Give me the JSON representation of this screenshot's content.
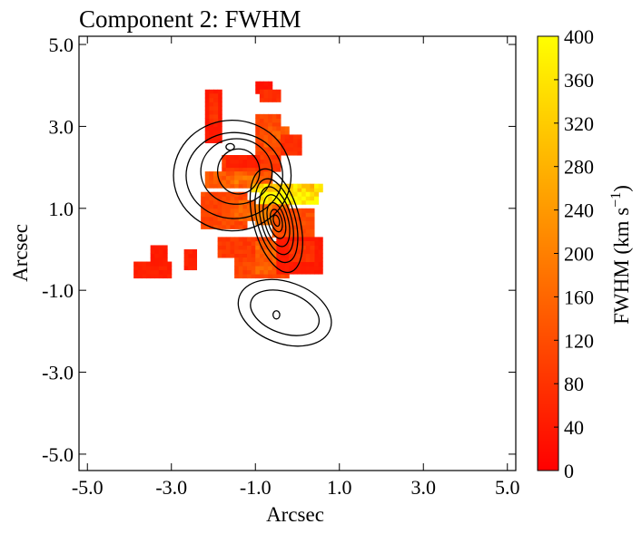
{
  "chart_data": {
    "type": "heatmap",
    "title": "Component 2: FWHM",
    "xlabel": "Arcsec",
    "ylabel": "Arcsec",
    "xlim": [
      -5.2,
      5.2
    ],
    "ylim": [
      -5.4,
      5.2
    ],
    "xticks": [
      -5.0,
      -3.0,
      -1.0,
      1.0,
      3.0,
      5.0
    ],
    "yticks": [
      -5.0,
      -3.0,
      -1.0,
      1.0,
      3.0,
      5.0
    ],
    "xtick_labels": [
      "-5.0",
      "-3.0",
      "-1.0",
      "1.0",
      "3.0",
      "5.0"
    ],
    "ytick_labels": [
      "-5.0",
      "-3.0",
      "-1.0",
      "1.0",
      "3.0",
      "5.0"
    ],
    "colorbar": {
      "label_main": "FWHM (km s",
      "label_sup": "−1",
      "label_close": ")",
      "min": 0,
      "max": 400,
      "ticks": [
        0,
        40,
        80,
        120,
        160,
        200,
        240,
        280,
        320,
        360,
        400
      ],
      "tick_labels": [
        "0",
        "40",
        "80",
        "120",
        "160",
        "200",
        "240",
        "280",
        "320",
        "360",
        "400"
      ],
      "colormap": "autumn"
    },
    "pixel_size_arcsec": 0.1,
    "regions": [
      {
        "x0": -2.2,
        "x1": -1.8,
        "y0": 2.6,
        "y1": 3.9,
        "value": 40
      },
      {
        "x0": -2.1,
        "x1": -1.9,
        "y0": 3.1,
        "y1": 3.8,
        "value": 80
      },
      {
        "x0": -1.0,
        "x1": -0.6,
        "y0": 3.8,
        "y1": 4.1,
        "value": 30
      },
      {
        "x0": -0.9,
        "x1": -0.4,
        "y0": 3.6,
        "y1": 3.9,
        "value": 70
      },
      {
        "x0": -1.0,
        "x1": -0.4,
        "y0": 2.2,
        "y1": 3.3,
        "value": 110
      },
      {
        "x0": -0.8,
        "x1": -0.2,
        "y0": 2.5,
        "y1": 3.0,
        "value": 140
      },
      {
        "x0": -0.4,
        "x1": 0.1,
        "y0": 2.3,
        "y1": 2.8,
        "value": 70
      },
      {
        "x0": -1.8,
        "x1": -0.4,
        "y0": 1.9,
        "y1": 2.3,
        "value": 90
      },
      {
        "x0": -1.7,
        "x1": -0.9,
        "y0": 2.0,
        "y1": 2.3,
        "value": 50
      },
      {
        "x0": -2.2,
        "x1": -0.6,
        "y0": 1.5,
        "y1": 1.9,
        "value": 140
      },
      {
        "x0": -1.6,
        "x1": -1.0,
        "y0": 1.6,
        "y1": 1.8,
        "value": 180
      },
      {
        "x0": -2.3,
        "x1": -1.2,
        "y0": 0.5,
        "y1": 1.4,
        "value": 110
      },
      {
        "x0": -1.6,
        "x1": -1.0,
        "y0": 0.7,
        "y1": 1.2,
        "value": 150
      },
      {
        "x0": -1.1,
        "x1": 0.6,
        "y0": 1.4,
        "y1": 1.6,
        "value": 330
      },
      {
        "x0": -0.9,
        "x1": 0.5,
        "y0": 1.1,
        "y1": 1.4,
        "value": 390
      },
      {
        "x0": -1.0,
        "x1": -0.2,
        "y0": 0.6,
        "y1": 1.1,
        "value": 180
      },
      {
        "x0": -0.6,
        "x1": 0.4,
        "y0": 0.3,
        "y1": 1.0,
        "value": 120
      },
      {
        "x0": -1.9,
        "x1": -0.6,
        "y0": -0.2,
        "y1": 0.3,
        "value": 90
      },
      {
        "x0": -1.5,
        "x1": -0.2,
        "y0": -0.7,
        "y1": -0.2,
        "value": 110
      },
      {
        "x0": -1.0,
        "x1": -0.4,
        "y0": -0.6,
        "y1": 0.2,
        "value": 150
      },
      {
        "x0": -0.5,
        "x1": 0.6,
        "y0": -0.6,
        "y1": 0.3,
        "value": 40
      },
      {
        "x0": -0.2,
        "x1": 0.4,
        "y0": -0.3,
        "y1": 0.2,
        "value": 80
      },
      {
        "x0": -3.9,
        "x1": -3.0,
        "y0": -0.7,
        "y1": -0.3,
        "value": 50
      },
      {
        "x0": -3.5,
        "x1": -3.1,
        "y0": -0.4,
        "y1": 0.1,
        "value": 40
      },
      {
        "x0": -2.7,
        "x1": -2.4,
        "y0": -0.5,
        "y1": 0.0,
        "value": 50
      }
    ],
    "contours": [
      {
        "cx": -0.5,
        "cy": 0.7,
        "rx": 0.55,
        "ry": 1.3,
        "rot": -15
      },
      {
        "cx": -0.5,
        "cy": 0.7,
        "rx": 0.45,
        "ry": 1.05,
        "rot": -15
      },
      {
        "cx": -0.5,
        "cy": 0.7,
        "rx": 0.36,
        "ry": 0.85,
        "rot": -15
      },
      {
        "cx": -0.5,
        "cy": 0.7,
        "rx": 0.28,
        "ry": 0.65,
        "rot": -15
      },
      {
        "cx": -0.5,
        "cy": 0.7,
        "rx": 0.2,
        "ry": 0.45,
        "rot": -15
      },
      {
        "cx": -0.5,
        "cy": 0.7,
        "rx": 0.13,
        "ry": 0.28,
        "rot": -15
      },
      {
        "cx": -0.5,
        "cy": 0.7,
        "rx": 0.07,
        "ry": 0.14,
        "rot": -15
      },
      {
        "cx": -1.55,
        "cy": 1.8,
        "rx": 1.4,
        "ry": 1.35,
        "rot": 0
      },
      {
        "cx": -1.5,
        "cy": 1.8,
        "rx": 1.15,
        "ry": 1.05,
        "rot": 0
      },
      {
        "cx": -1.45,
        "cy": 1.9,
        "rx": 0.85,
        "ry": 0.8,
        "rot": 0
      },
      {
        "cx": -1.4,
        "cy": 1.9,
        "rx": 0.5,
        "ry": 0.55,
        "rot": 0
      },
      {
        "cx": -1.6,
        "cy": 2.5,
        "rx": 0.1,
        "ry": 0.08,
        "rot": 0
      },
      {
        "cx": -0.3,
        "cy": -1.55,
        "rx": 1.15,
        "ry": 0.75,
        "rot": 20
      },
      {
        "cx": -0.3,
        "cy": -1.55,
        "rx": 0.85,
        "ry": 0.5,
        "rot": 20
      },
      {
        "cx": -0.5,
        "cy": -1.6,
        "rx": 0.08,
        "ry": 0.1,
        "rot": 0
      }
    ]
  }
}
